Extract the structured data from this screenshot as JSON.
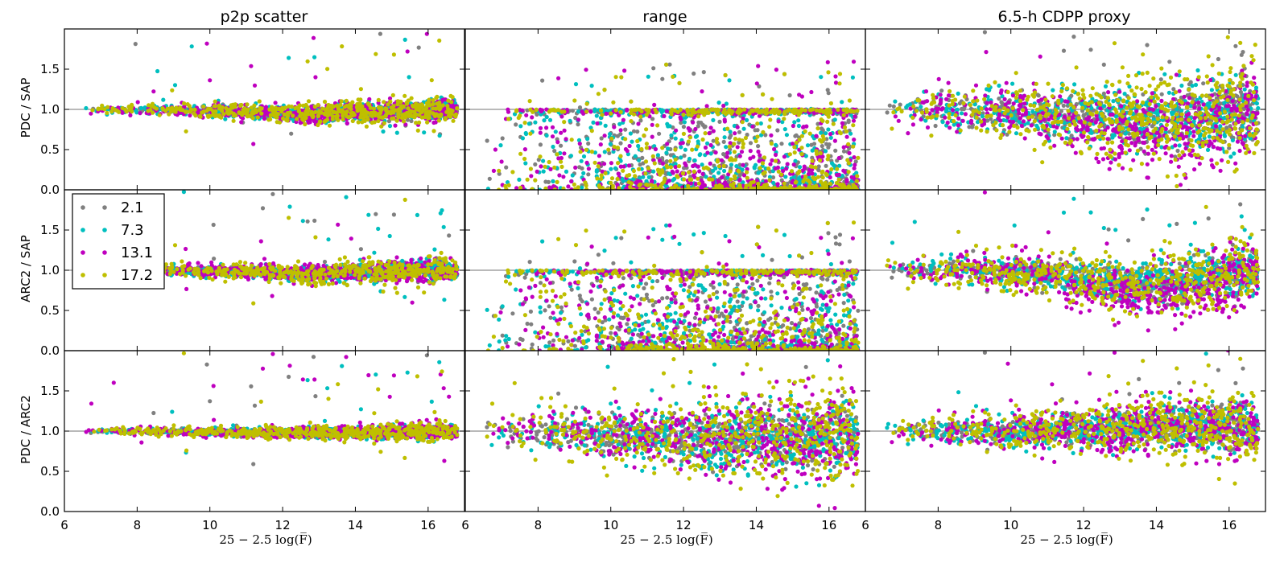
{
  "chart_data": {
    "type": "scatter",
    "grid_layout": "3 rows x 3 columns, shared axes",
    "column_titles": [
      "p2p scatter",
      "range",
      "6.5-h CDPP proxy"
    ],
    "row_ylabels": [
      "PDC / SAP",
      "ARC2 / SAP",
      "PDC / ARC2"
    ],
    "xlabel": "25 − 2.5 log(F̅)",
    "xlim": [
      6,
      17
    ],
    "ylim": [
      0,
      2
    ],
    "x_ticks": [
      "6",
      "8",
      "10",
      "12",
      "14",
      "16"
    ],
    "y_ticks": [
      "0.0",
      "0.5",
      "1.0",
      "1.5"
    ],
    "reference_line_y": 1.0,
    "legend": {
      "placement": "inside, top-left of middle-left panel",
      "entries": [
        {
          "label": "2.1",
          "color": "#808080"
        },
        {
          "label": "7.3",
          "color": "#00bfbf"
        },
        {
          "label": "13.1",
          "color": "#bf00bf"
        },
        {
          "label": "17.2",
          "color": "#bfbf00"
        }
      ]
    },
    "series_colors": [
      "#808080",
      "#00bfbf",
      "#bf00bf",
      "#bfbf00"
    ],
    "panels": [
      {
        "row": 0,
        "col": 0,
        "center_trend": [
          [
            6.5,
            1.0
          ],
          [
            9,
            0.99
          ],
          [
            11,
            0.97
          ],
          [
            12.5,
            0.94
          ],
          [
            14,
            0.96
          ],
          [
            16,
            0.99
          ],
          [
            17,
            1.0
          ]
        ],
        "spread": 0.03
      },
      {
        "row": 0,
        "col": 1,
        "note": "values spread from 0 to 1, denser near 0 at faint end",
        "xrange": [
          6.5,
          16.5
        ]
      },
      {
        "row": 0,
        "col": 2,
        "center_trend": [
          [
            6.5,
            1.0
          ],
          [
            10,
            0.98
          ],
          [
            12,
            0.92
          ],
          [
            13.5,
            0.85
          ],
          [
            15,
            0.9
          ],
          [
            17,
            1.0
          ]
        ],
        "spread": 0.12
      },
      {
        "row": 1,
        "col": 0,
        "center_trend": [
          [
            6.5,
            1.0
          ],
          [
            9,
            1.0
          ],
          [
            11,
            0.99
          ],
          [
            12.5,
            0.95
          ],
          [
            14,
            0.97
          ],
          [
            16,
            1.0
          ],
          [
            17,
            1.0
          ]
        ],
        "spread": 0.03
      },
      {
        "row": 1,
        "col": 1,
        "note": "values spread from 0 to 1, denser near 0 at faint end",
        "xrange": [
          6.5,
          16.5
        ]
      },
      {
        "row": 1,
        "col": 2,
        "center_trend": [
          [
            6.5,
            1.0
          ],
          [
            10,
            0.99
          ],
          [
            12,
            0.9
          ],
          [
            13.5,
            0.8
          ],
          [
            15,
            0.88
          ],
          [
            17,
            1.0
          ]
        ],
        "spread": 0.08
      },
      {
        "row": 2,
        "col": 0,
        "center_trend": [
          [
            6.5,
            1.0
          ],
          [
            10,
            0.99
          ],
          [
            12.5,
            0.98
          ],
          [
            14,
            0.98
          ],
          [
            17,
            1.0
          ]
        ],
        "spread": 0.02
      },
      {
        "row": 2,
        "col": 1,
        "center_trend": [
          [
            6.5,
            1.0
          ],
          [
            9,
            0.98
          ],
          [
            11,
            0.94
          ],
          [
            13,
            0.88
          ],
          [
            15,
            0.9
          ],
          [
            16.5,
            0.95
          ]
        ],
        "spread": 0.12
      },
      {
        "row": 2,
        "col": 2,
        "center_trend": [
          [
            6.5,
            1.0
          ],
          [
            10,
            1.0
          ],
          [
            12,
            1.02
          ],
          [
            14,
            1.05
          ],
          [
            15.5,
            1.08
          ],
          [
            17,
            1.0
          ]
        ],
        "spread": 0.08
      }
    ]
  }
}
